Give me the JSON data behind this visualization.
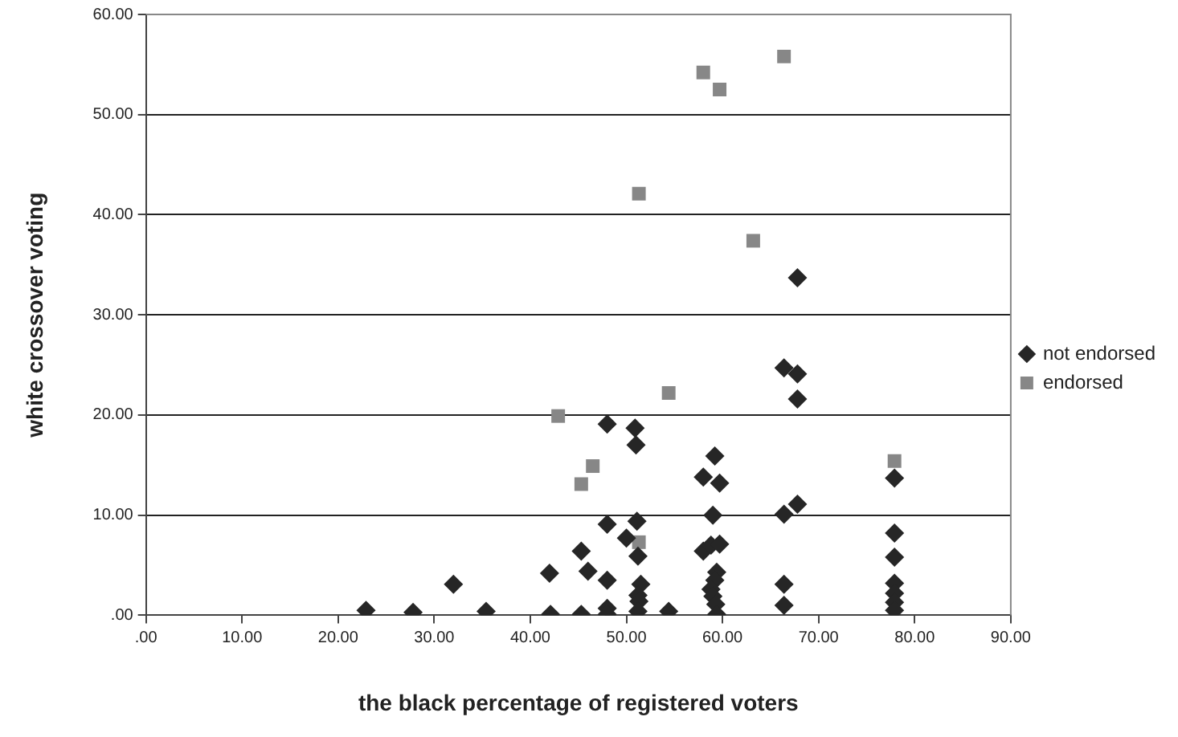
{
  "chart_data": {
    "type": "scatter",
    "xlabel": "the black percentage of registered voters",
    "ylabel": "white crossover voting",
    "xlim": [
      0,
      90
    ],
    "ylim": [
      0,
      60
    ],
    "xticks": [
      {
        "value": 0,
        "label": ".00"
      },
      {
        "value": 10,
        "label": "10.00"
      },
      {
        "value": 20,
        "label": "20.00"
      },
      {
        "value": 30,
        "label": "30.00"
      },
      {
        "value": 40,
        "label": "40.00"
      },
      {
        "value": 50,
        "label": "50.00"
      },
      {
        "value": 60,
        "label": "60.00"
      },
      {
        "value": 70,
        "label": "70.00"
      },
      {
        "value": 80,
        "label": "80.00"
      },
      {
        "value": 90,
        "label": "90.00"
      }
    ],
    "yticks": [
      {
        "value": 0,
        "label": ".00"
      },
      {
        "value": 10,
        "label": "10.00"
      },
      {
        "value": 20,
        "label": "20.00"
      },
      {
        "value": 30,
        "label": "30.00"
      },
      {
        "value": 40,
        "label": "40.00"
      },
      {
        "value": 50,
        "label": "50.00"
      },
      {
        "value": 60,
        "label": "60.00"
      }
    ],
    "grid": "y",
    "legend": "right",
    "series": [
      {
        "name": "not endorsed",
        "color": "#262626",
        "marker": "diamond",
        "x": [
          22.9,
          27.8,
          32.0,
          35.4,
          42.0,
          42.1,
          45.3,
          45.3,
          46.0,
          48.0,
          48.0,
          48.0,
          48.0,
          48.0,
          50.0,
          50.9,
          51.0,
          51.1,
          51.2,
          51.5,
          51.2,
          51.3,
          51.2,
          54.4,
          58.0,
          59.2,
          59.7,
          59.0,
          58.0,
          58.8,
          59.7,
          59.4,
          59.2,
          58.8,
          59.0,
          59.3,
          59.4,
          66.4,
          67.8,
          67.8,
          67.8,
          66.4,
          67.8,
          66.4,
          66.4,
          77.9,
          77.9,
          77.9,
          77.9,
          77.9,
          77.9,
          77.9
        ],
        "values": [
          0.5,
          0.3,
          3.1,
          0.4,
          4.2,
          0.1,
          6.4,
          0.1,
          4.4,
          19.1,
          9.1,
          3.5,
          0.7,
          0.1,
          7.7,
          18.7,
          17.0,
          9.4,
          5.9,
          3.1,
          2.0,
          1.4,
          0.4,
          0.4,
          13.8,
          15.9,
          13.2,
          10.0,
          6.4,
          7.0,
          7.1,
          4.3,
          3.5,
          2.6,
          1.9,
          1.1,
          0.1,
          24.7,
          24.1,
          21.6,
          33.7,
          10.1,
          11.1,
          3.1,
          1.0,
          13.7,
          8.2,
          5.8,
          3.2,
          2.2,
          1.3,
          0.5
        ]
      },
      {
        "name": "endorsed",
        "color": "#878787",
        "marker": "square",
        "x": [
          42.9,
          46.5,
          45.3,
          51.3,
          51.3,
          54.4,
          58.0,
          59.7,
          63.2,
          66.4,
          77.9
        ],
        "values": [
          19.9,
          14.9,
          13.1,
          7.3,
          42.1,
          22.2,
          54.2,
          52.5,
          37.4,
          55.8,
          15.4
        ]
      }
    ]
  }
}
